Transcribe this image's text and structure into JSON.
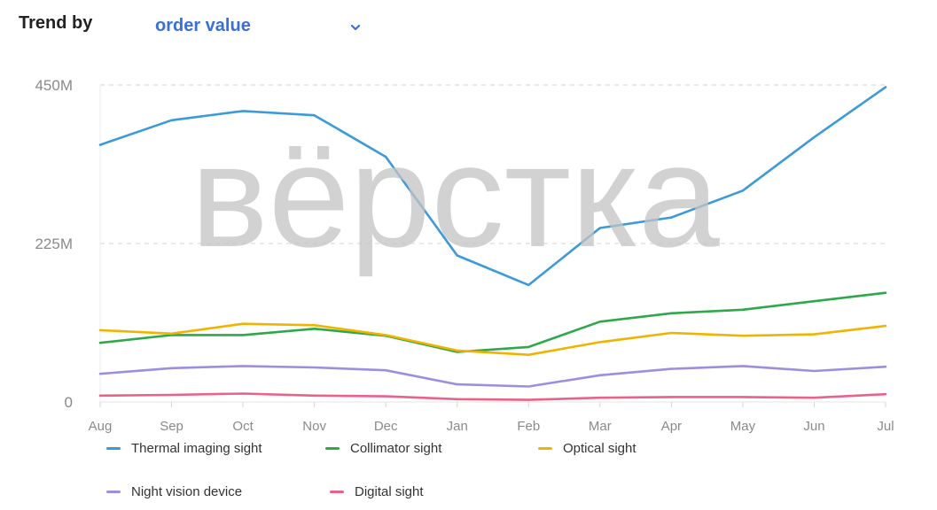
{
  "header": {
    "trend_label": "Trend by",
    "metric_selected": "order value"
  },
  "watermark": "вёрстка",
  "chart_data": {
    "type": "line",
    "title": "",
    "xlabel": "",
    "ylabel": "",
    "ylim": [
      0,
      450000000
    ],
    "yticks": [
      {
        "value": 0,
        "label": "0"
      },
      {
        "value": 225000000,
        "label": "225M"
      },
      {
        "value": 450000000,
        "label": "450M"
      }
    ],
    "grid": true,
    "legend_position": "bottom",
    "categories": [
      "Aug",
      "Sep",
      "Oct",
      "Nov",
      "Dec",
      "Jan",
      "Feb",
      "Mar",
      "Apr",
      "May",
      "Jun",
      "Jul"
    ],
    "series": [
      {
        "name": "Thermal imaging sight",
        "color": "#3d9ad9",
        "values": [
          365000000,
          400000000,
          413000000,
          407000000,
          348000000,
          208000000,
          166000000,
          247000000,
          262000000,
          300000000,
          376000000,
          447000000
        ]
      },
      {
        "name": "Collimator sight",
        "color": "#2ea84a",
        "values": [
          84000000,
          95000000,
          95000000,
          104000000,
          94000000,
          71000000,
          78000000,
          114000000,
          126000000,
          131000000,
          143000000,
          155000000
        ]
      },
      {
        "name": "Optical sight",
        "color": "#f0b400",
        "values": [
          102000000,
          97000000,
          111000000,
          109000000,
          95000000,
          73000000,
          67000000,
          85000000,
          98000000,
          94000000,
          96000000,
          108000000
        ]
      },
      {
        "name": "Night vision device",
        "color": "#9b8fe0",
        "values": [
          40000000,
          48000000,
          51000000,
          49000000,
          45000000,
          25000000,
          22000000,
          38000000,
          47000000,
          51000000,
          44000000,
          50000000
        ]
      },
      {
        "name": "Digital sight",
        "color": "#e8628a",
        "values": [
          9000000,
          10000000,
          12000000,
          9000000,
          8000000,
          4000000,
          3000000,
          6000000,
          7000000,
          7000000,
          6000000,
          11000000
        ]
      }
    ]
  }
}
